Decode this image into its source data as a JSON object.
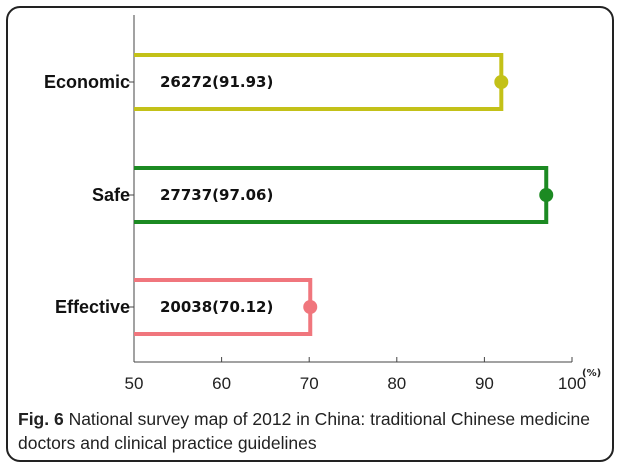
{
  "chart_data": {
    "type": "bar",
    "orientation": "horizontal",
    "categories": [
      "Economic",
      "Safe",
      "Effective"
    ],
    "values": [
      91.93,
      97.06,
      70.12
    ],
    "counts": [
      26272,
      27737,
      20038
    ],
    "bar_labels": [
      "26272(91.93)",
      "27737(97.06)",
      "20038(70.12)"
    ],
    "colors": [
      "#c3c118",
      "#1c8a22",
      "#f0767d"
    ],
    "xlim": [
      50,
      100
    ],
    "xticks": [
      "50",
      "60",
      "70",
      "80",
      "90",
      "100"
    ],
    "xunit": "(%)",
    "grid": false
  },
  "caption": {
    "label": "Fig. 6",
    "text": " National survey map of 2012 in China: traditional Chinese medicine doctors and clinical practice guidelines"
  }
}
